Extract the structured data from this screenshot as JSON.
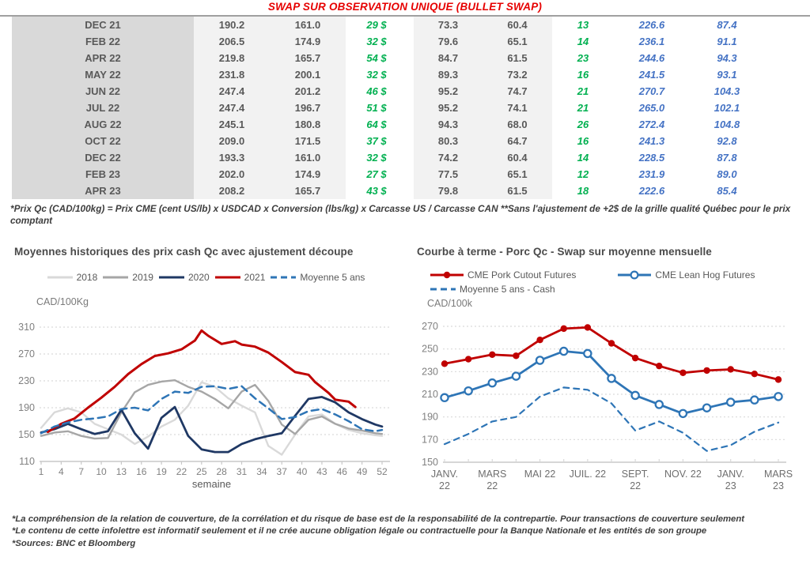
{
  "title": "SWAP SUR OBSERVATION UNIQUE (BULLET SWAP)",
  "table": {
    "rows": [
      {
        "month": "DEC 21",
        "values": [
          "190.2",
          "161.0",
          "29 $",
          "73.3",
          "60.4",
          "13",
          "226.6",
          "87.4"
        ]
      },
      {
        "month": "FEB 22",
        "values": [
          "206.5",
          "174.9",
          "32 $",
          "79.6",
          "65.1",
          "14",
          "236.1",
          "91.1"
        ]
      },
      {
        "month": "APR 22",
        "values": [
          "219.8",
          "165.7",
          "54 $",
          "84.7",
          "61.5",
          "23",
          "244.6",
          "94.3"
        ]
      },
      {
        "month": "MAY 22",
        "values": [
          "231.8",
          "200.1",
          "32 $",
          "89.3",
          "73.2",
          "16",
          "241.5",
          "93.1"
        ]
      },
      {
        "month": "JUN 22",
        "values": [
          "247.4",
          "201.2",
          "46 $",
          "95.2",
          "74.7",
          "21",
          "270.7",
          "104.3"
        ]
      },
      {
        "month": "JUL 22",
        "values": [
          "247.4",
          "196.7",
          "51 $",
          "95.2",
          "74.1",
          "21",
          "265.0",
          "102.1"
        ]
      },
      {
        "month": "AUG 22",
        "values": [
          "245.1",
          "180.8",
          "64 $",
          "94.3",
          "68.0",
          "26",
          "272.4",
          "104.8"
        ]
      },
      {
        "month": "OCT 22",
        "values": [
          "209.0",
          "171.5",
          "37 $",
          "80.3",
          "64.7",
          "16",
          "241.3",
          "92.8"
        ]
      },
      {
        "month": "DEC 22",
        "values": [
          "193.3",
          "161.0",
          "32 $",
          "74.2",
          "60.4",
          "14",
          "228.5",
          "87.8"
        ]
      },
      {
        "month": "FEB 23",
        "values": [
          "202.0",
          "174.9",
          "27 $",
          "77.5",
          "65.1",
          "12",
          "231.9",
          "89.0"
        ]
      },
      {
        "month": "APR 23",
        "values": [
          "208.2",
          "165.7",
          "43 $",
          "79.8",
          "61.5",
          "18",
          "222.6",
          "85.4"
        ]
      }
    ]
  },
  "footnote_formula": "*Prix Qc (CAD/100kg) = Prix CME (cent US/lb) x USDCAD x Conversion (lbs/kg) x Carcasse US / Carcasse CAN **Sans l'ajustement de +2$ de la grille qualité Québec pour le prix comptant",
  "chart_data": [
    {
      "type": "line",
      "title": "Moyennes historiques des prix cash Qc avec ajustement découpe",
      "ylabel": "CAD/100Kg",
      "xlabel": "semaine",
      "ylim": [
        110,
        310
      ],
      "yticks": [
        110,
        150,
        190,
        230,
        270,
        310
      ],
      "xlim": [
        1,
        52
      ],
      "xticks": [
        1,
        4,
        7,
        10,
        13,
        16,
        19,
        22,
        25,
        28,
        31,
        34,
        37,
        40,
        43,
        46,
        49,
        52
      ],
      "grid": true,
      "legend_position": "top-center",
      "series": [
        {
          "name": "2018",
          "color": "#d9d9d9",
          "dash": false,
          "x": [
            1,
            3,
            5,
            7,
            9,
            11,
            13,
            15,
            17,
            19,
            21,
            23,
            25,
            27,
            29,
            31,
            33,
            35,
            37,
            39,
            41,
            43,
            45,
            47,
            49,
            51,
            52
          ],
          "values": [
            160,
            183,
            189,
            183,
            166,
            158,
            150,
            136,
            147,
            162,
            172,
            193,
            228,
            221,
            204,
            193,
            183,
            133,
            120,
            150,
            177,
            180,
            166,
            157,
            152,
            149,
            148
          ]
        },
        {
          "name": "2019",
          "color": "#a6a6a6",
          "dash": false,
          "x": [
            1,
            3,
            5,
            7,
            9,
            11,
            13,
            15,
            17,
            19,
            21,
            23,
            25,
            27,
            29,
            31,
            33,
            35,
            37,
            39,
            41,
            43,
            45,
            47,
            49,
            51,
            52
          ],
          "values": [
            148,
            153,
            155,
            148,
            144,
            145,
            183,
            213,
            224,
            229,
            231,
            221,
            214,
            203,
            189,
            214,
            224,
            200,
            165,
            151,
            172,
            177,
            166,
            159,
            156,
            152,
            151
          ]
        },
        {
          "name": "2020",
          "color": "#1f3864",
          "dash": false,
          "x": [
            1,
            3,
            5,
            7,
            9,
            11,
            13,
            15,
            17,
            19,
            21,
            23,
            25,
            27,
            29,
            31,
            33,
            35,
            37,
            39,
            41,
            43,
            45,
            47,
            49,
            51,
            52
          ],
          "values": [
            153,
            158,
            166,
            158,
            151,
            155,
            187,
            152,
            129,
            175,
            191,
            148,
            128,
            124,
            124,
            136,
            143,
            148,
            152,
            178,
            203,
            206,
            198,
            183,
            173,
            165,
            162
          ]
        },
        {
          "name": "2021",
          "color": "#c00000",
          "dash": false,
          "x": [
            2,
            4,
            6,
            8,
            10,
            12,
            14,
            16,
            18,
            20,
            22,
            24,
            25,
            26,
            28,
            30,
            31,
            33,
            35,
            37,
            39,
            41,
            42,
            44,
            45,
            47,
            48
          ],
          "values": [
            154,
            166,
            174,
            190,
            205,
            221,
            240,
            255,
            267,
            271,
            277,
            290,
            305,
            297,
            285,
            289,
            284,
            281,
            272,
            258,
            243,
            239,
            228,
            212,
            202,
            199,
            191
          ]
        },
        {
          "name": "Moyenne 5 ans",
          "color": "#2e75b6",
          "dash": true,
          "x": [
            1,
            3,
            5,
            7,
            9,
            11,
            13,
            15,
            17,
            19,
            21,
            23,
            25,
            27,
            29,
            31,
            33,
            35,
            37,
            39,
            41,
            43,
            45,
            47,
            49,
            51,
            52
          ],
          "values": [
            152,
            162,
            168,
            172,
            174,
            177,
            188,
            190,
            186,
            203,
            214,
            212,
            221,
            222,
            218,
            222,
            204,
            189,
            173,
            176,
            185,
            188,
            180,
            170,
            158,
            155,
            157
          ]
        }
      ]
    },
    {
      "type": "line",
      "title": "Courbe à terme - Porc Qc - Swap sur moyenne mensuelle",
      "ylabel": "CAD/100k",
      "ylim": [
        150,
        270
      ],
      "yticks": [
        150,
        170,
        190,
        210,
        230,
        250,
        270
      ],
      "x_tick_labels": [
        "JANV.\n22",
        "MARS\n22",
        "MAI 22",
        "JUIL. 22",
        "SEPT.\n22",
        "NOV. 22",
        "JANV.\n23",
        "MARS\n23"
      ],
      "x_tick_indices": [
        0,
        2,
        4,
        6,
        8,
        10,
        12,
        14
      ],
      "grid": true,
      "legend_position": "top-left",
      "series": [
        {
          "name": "CME Pork Cutout Futures",
          "color": "#c00000",
          "dash": false,
          "marker": "filled",
          "values": [
            237,
            241,
            245,
            244,
            258,
            268,
            269,
            255,
            242,
            235,
            229,
            231,
            232,
            228,
            223
          ]
        },
        {
          "name": "CME Lean Hog Futures",
          "color": "#2e75b6",
          "dash": false,
          "marker": "open",
          "values": [
            207,
            213,
            220,
            226,
            240,
            248,
            246,
            224,
            209,
            201,
            193,
            198,
            203,
            205,
            208
          ]
        },
        {
          "name": "Moyenne 5 ans - Cash",
          "color": "#2e75b6",
          "dash": true,
          "values": [
            166,
            175,
            186,
            190,
            208,
            216,
            214,
            202,
            178,
            186,
            176,
            160,
            165,
            177,
            185
          ]
        }
      ]
    }
  ],
  "footnotes": [
    "*La compréhension de la relation de couverture, de la corrélation et du risque de base est de la responsabilité de la contrepartie. Pour transactions de couverture seulement",
    "*Le contenu de cette infolettre est informatif seulement et il ne crée aucune obligation légale ou contractuelle pour la Banque Nationale et les entités de son groupe",
    "*Sources: BNC et Bloomberg"
  ],
  "colors": {
    "title_red": "#e60000",
    "table_green": "#00b050",
    "table_blue": "#4472c4",
    "table_text": "#595959",
    "month_bg": "#d9d9d9",
    "shade_bg": "#f2f2f2",
    "grid": "#d9d9d9",
    "axis": "#c8c8c8",
    "tick_text": "#808080"
  }
}
